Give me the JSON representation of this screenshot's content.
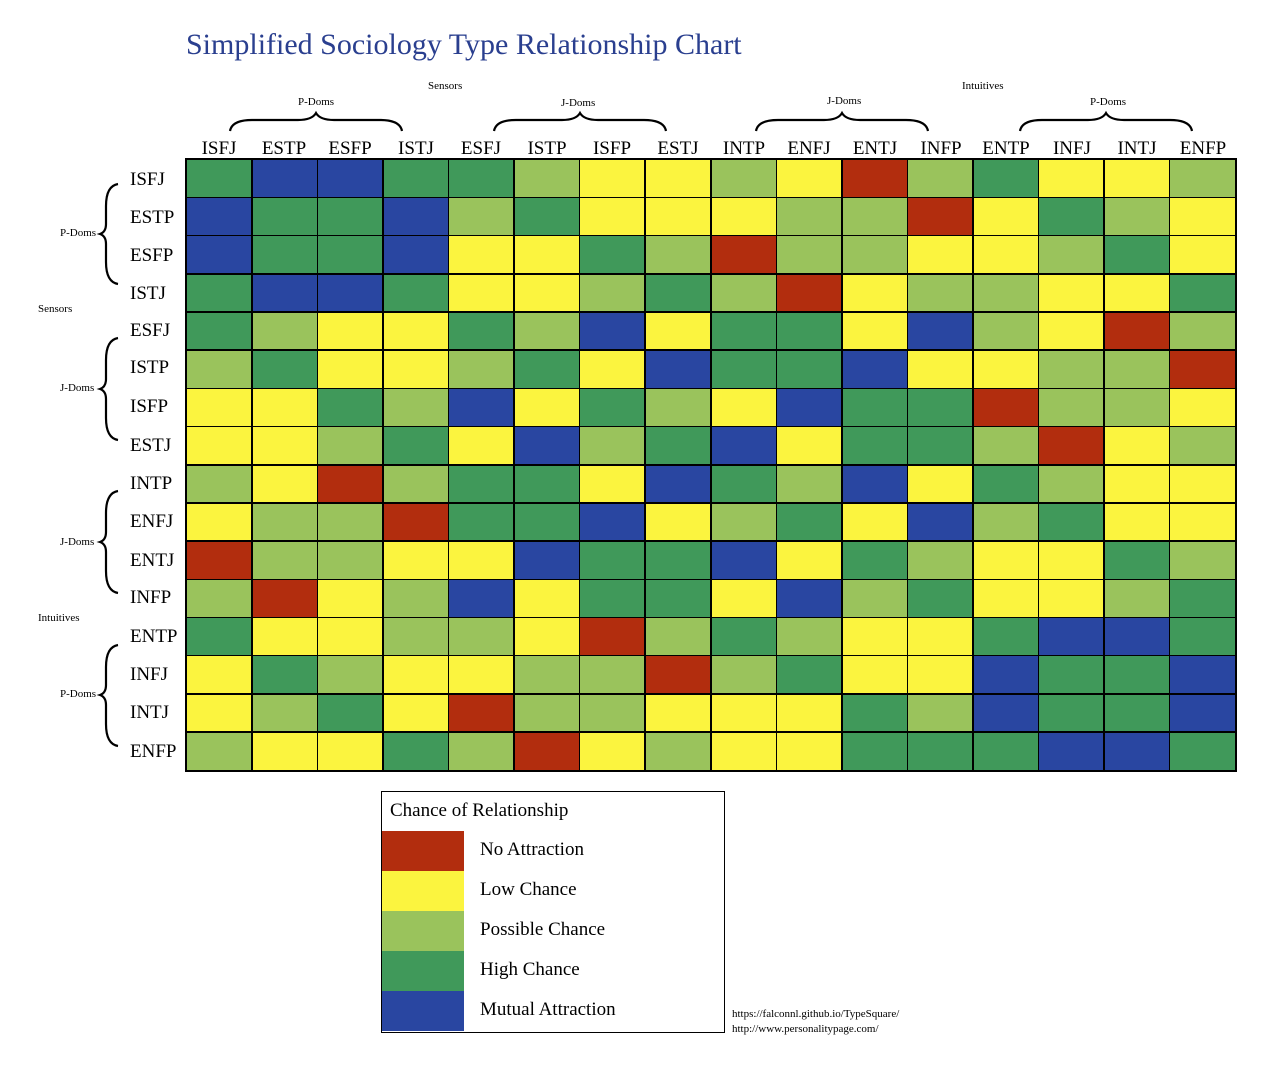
{
  "chart_data": {
    "type": "heatmap",
    "title": "Simplified Sociology Type Relationship Chart",
    "columns": [
      "ISFJ",
      "ESTP",
      "ESFP",
      "ISTJ",
      "ESFJ",
      "ISTP",
      "ISFP",
      "ESTJ",
      "INTP",
      "ENFJ",
      "ENTJ",
      "INFP",
      "ENTP",
      "INFJ",
      "INTJ",
      "ENFP"
    ],
    "rows": [
      "ISFJ",
      "ESTP",
      "ESFP",
      "ISTJ",
      "ESFJ",
      "ISTP",
      "ISFP",
      "ESTJ",
      "INTP",
      "ENFJ",
      "ENTJ",
      "INFP",
      "ENTP",
      "INFJ",
      "INTJ",
      "ENFP"
    ],
    "values": [
      [
        3,
        4,
        4,
        3,
        3,
        2,
        1,
        1,
        2,
        1,
        0,
        2,
        3,
        1,
        1,
        2
      ],
      [
        4,
        3,
        3,
        4,
        2,
        3,
        1,
        1,
        1,
        2,
        2,
        0,
        1,
        3,
        2,
        1
      ],
      [
        4,
        3,
        3,
        4,
        1,
        1,
        3,
        2,
        0,
        2,
        2,
        1,
        1,
        2,
        3,
        1
      ],
      [
        3,
        4,
        4,
        3,
        1,
        1,
        2,
        3,
        2,
        0,
        1,
        2,
        2,
        1,
        1,
        3
      ],
      [
        3,
        2,
        1,
        1,
        3,
        2,
        4,
        1,
        3,
        3,
        1,
        4,
        2,
        1,
        0,
        2
      ],
      [
        2,
        3,
        1,
        1,
        2,
        3,
        1,
        4,
        3,
        3,
        4,
        1,
        1,
        2,
        2,
        0
      ],
      [
        1,
        1,
        3,
        2,
        4,
        1,
        3,
        2,
        1,
        4,
        3,
        3,
        0,
        2,
        2,
        1
      ],
      [
        1,
        1,
        2,
        3,
        1,
        4,
        2,
        3,
        4,
        1,
        3,
        3,
        2,
        0,
        1,
        2
      ],
      [
        2,
        1,
        0,
        2,
        3,
        3,
        1,
        4,
        3,
        2,
        4,
        1,
        3,
        2,
        1,
        1
      ],
      [
        1,
        2,
        2,
        0,
        3,
        3,
        4,
        1,
        2,
        3,
        1,
        4,
        2,
        3,
        1,
        1
      ],
      [
        0,
        2,
        2,
        1,
        1,
        4,
        3,
        3,
        4,
        1,
        3,
        2,
        1,
        1,
        3,
        2
      ],
      [
        2,
        0,
        1,
        2,
        4,
        1,
        3,
        3,
        1,
        4,
        2,
        3,
        1,
        1,
        2,
        3
      ],
      [
        3,
        1,
        1,
        2,
        2,
        1,
        0,
        2,
        3,
        2,
        1,
        1,
        3,
        4,
        4,
        3
      ],
      [
        1,
        3,
        2,
        1,
        1,
        2,
        2,
        0,
        2,
        3,
        1,
        1,
        4,
        3,
        3,
        4
      ],
      [
        1,
        2,
        3,
        1,
        0,
        2,
        2,
        1,
        1,
        1,
        3,
        2,
        4,
        3,
        3,
        4
      ],
      [
        2,
        1,
        1,
        3,
        2,
        0,
        1,
        2,
        1,
        1,
        3,
        3,
        3,
        4,
        4,
        3
      ]
    ],
    "legend": {
      "title": "Chance of Relationship",
      "items": [
        {
          "label": "No Attraction",
          "color": "#b22d0e"
        },
        {
          "label": "Low Chance",
          "color": "#fbf43f"
        },
        {
          "label": "Possible Chance",
          "color": "#9ac35c"
        },
        {
          "label": "High Chance",
          "color": "#40995a"
        },
        {
          "label": "Mutual Attraction",
          "color": "#2946a1"
        }
      ]
    },
    "column_groups": {
      "top": [
        {
          "label": "Sensors"
        },
        {
          "label": "Intuitives"
        }
      ],
      "sub": [
        "P-Doms",
        "J-Doms",
        "J-Doms",
        "P-Doms"
      ]
    },
    "row_groups": {
      "top": [
        "Sensors",
        "Intuitives"
      ],
      "sub": [
        "P-Doms",
        "J-Doms",
        "J-Doms",
        "P-Doms"
      ]
    }
  },
  "sources": [
    "https://falconnl.github.io/TypeSquare/",
    "http://www.personalitypage.com/"
  ]
}
